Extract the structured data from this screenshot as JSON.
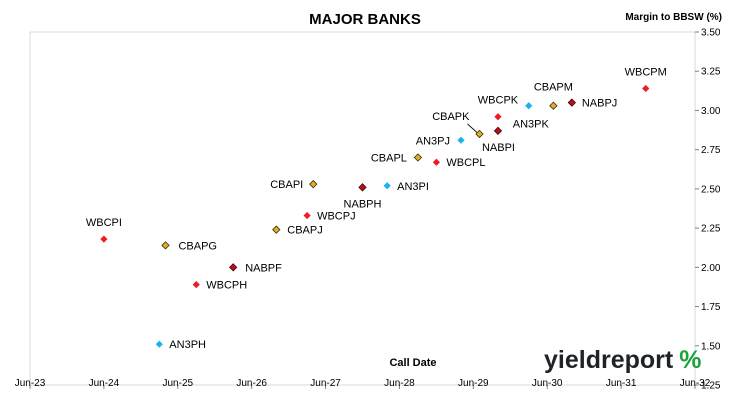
{
  "chart_data": {
    "type": "scatter",
    "title": "MAJOR BANKS",
    "xlabel": "Call Date",
    "ylabel": "Margin to BBSW (%)",
    "x_ticks": [
      "Jun-23",
      "Jun-24",
      "Jun-25",
      "Jun-26",
      "Jun-27",
      "Jun-28",
      "Jun-29",
      "Jun-30",
      "Jun-31",
      "Jun-32"
    ],
    "xlim": [
      "Jun-23",
      "Jun-32"
    ],
    "ylim": [
      1.25,
      3.5
    ],
    "y_ticks": [
      "1.25",
      "1.50",
      "1.75",
      "2.00",
      "2.25",
      "2.50",
      "2.75",
      "3.00",
      "3.25",
      "3.50"
    ],
    "grid": false,
    "colors": {
      "ANZ": "#1ab3ef",
      "CBA": "#e3ac2e",
      "NAB": "#b3121d",
      "WBC": "#ee1c25"
    },
    "points": [
      {
        "label": "WBCPI",
        "bank": "WBC",
        "x": "Jun-24",
        "y": 2.18
      },
      {
        "label": "AN3PH",
        "bank": "ANZ",
        "x": "Mar-25",
        "y": 1.51
      },
      {
        "label": "CBAPG",
        "bank": "CBA",
        "x": "Apr-25",
        "y": 2.14
      },
      {
        "label": "WBCPH",
        "bank": "WBC",
        "x": "Sep-25",
        "y": 1.89
      },
      {
        "label": "NABPF",
        "bank": "NAB",
        "x": "Mar-26",
        "y": 2.0
      },
      {
        "label": "CBAPJ",
        "bank": "CBA",
        "x": "Oct-26",
        "y": 2.24
      },
      {
        "label": "WBCPJ",
        "bank": "WBC",
        "x": "Mar-27",
        "y": 2.33
      },
      {
        "label": "CBAPI",
        "bank": "CBA",
        "x": "Apr-27",
        "y": 2.53
      },
      {
        "label": "NABPH",
        "bank": "NAB",
        "x": "Dec-27",
        "y": 2.51
      },
      {
        "label": "AN3PI",
        "bank": "ANZ",
        "x": "Apr-28",
        "y": 2.52
      },
      {
        "label": "CBAPL",
        "bank": "CBA",
        "x": "Sep-28",
        "y": 2.7
      },
      {
        "label": "WBCPL",
        "bank": "WBC",
        "x": "Dec-28",
        "y": 2.67
      },
      {
        "label": "AN3PJ",
        "bank": "ANZ",
        "x": "Apr-29",
        "y": 2.81
      },
      {
        "label": "CBAPK",
        "bank": "CBA",
        "x": "Jul-29",
        "y": 2.85
      },
      {
        "label": "NABPI",
        "bank": "NAB",
        "x": "Oct-29",
        "y": 2.87
      },
      {
        "label": "WBCPK",
        "bank": "WBC",
        "x": "Oct-29",
        "y": 2.96
      },
      {
        "label": "AN3PK",
        "bank": "ANZ",
        "x": "Mar-30",
        "y": 3.03
      },
      {
        "label": "CBAPM",
        "bank": "CBA",
        "x": "Jul-30",
        "y": 3.03
      },
      {
        "label": "NABPJ",
        "bank": "NAB",
        "x": "Oct-30",
        "y": 3.05
      },
      {
        "label": "WBCPM",
        "bank": "WBC",
        "x": "Oct-31",
        "y": 3.14
      }
    ]
  },
  "logo_text": "yieldreport %"
}
